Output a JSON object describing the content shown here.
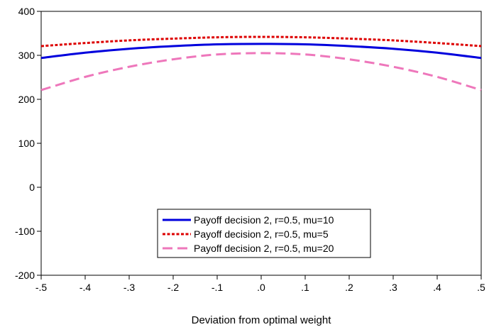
{
  "chart_data": {
    "type": "line",
    "title": "",
    "xlabel": "Deviation from optimal weight",
    "ylabel": "",
    "xlim": [
      -0.5,
      0.5
    ],
    "ylim": [
      -200,
      400
    ],
    "xticks": [
      -0.5,
      -0.4,
      -0.3,
      -0.2,
      -0.1,
      0.0,
      0.1,
      0.2,
      0.3,
      0.4,
      0.5
    ],
    "xtick_labels": [
      "-.5",
      "-.4",
      "-.3",
      "-.2",
      "-.1",
      ".0",
      ".1",
      ".2",
      ".3",
      ".4",
      ".5"
    ],
    "yticks": [
      -200,
      -100,
      0,
      100,
      200,
      300,
      400
    ],
    "ytick_labels": [
      "-200",
      "-100",
      "0",
      "100",
      "200",
      "300",
      "400"
    ],
    "grid": false,
    "legend_position": "bottom-center",
    "x": [
      -0.5,
      -0.4,
      -0.3,
      -0.2,
      -0.1,
      0.0,
      0.1,
      0.2,
      0.3,
      0.4,
      0.5
    ],
    "series": [
      {
        "name": "Payoff decision 2, r=0.5, mu=10",
        "color": "#0000dd",
        "style": "solid",
        "values": [
          294,
          306,
          315,
          321,
          325,
          326,
          325,
          321,
          315,
          306,
          294
        ]
      },
      {
        "name": "Payoff decision 2, r=0.5, mu=5",
        "color": "#dd0000",
        "style": "dotted",
        "values": [
          321,
          328,
          334,
          338,
          341,
          342,
          341,
          338,
          334,
          328,
          321
        ]
      },
      {
        "name": "Payoff decision 2, r=0.5, mu=20",
        "color": "#ee77bb",
        "style": "dashed",
        "values": [
          221,
          251,
          274,
          291,
          302,
          305,
          302,
          291,
          274,
          251,
          221
        ]
      }
    ]
  }
}
